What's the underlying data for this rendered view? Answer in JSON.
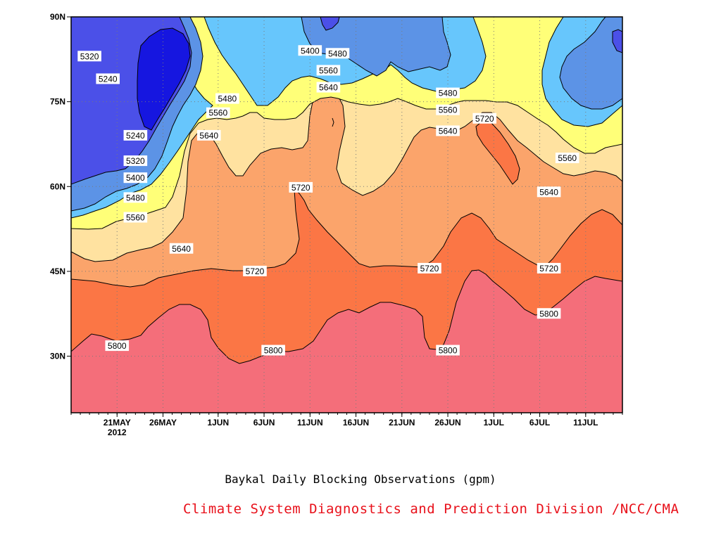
{
  "chart_data": {
    "type": "heatmap",
    "subtype": "filled-contour (time-latitude Hovmoller)",
    "x_axis": {
      "tick_labels": [
        "21MAY\n2012",
        "26MAY",
        "1JUN",
        "6JUN",
        "11JUN",
        "16JUN",
        "21JUN",
        "26JUN",
        "1JUL",
        "6JUL",
        "11JUL"
      ],
      "range": [
        "2012-05-16",
        "2012-07-15"
      ]
    },
    "y_axis": {
      "tick_labels": [
        "30N",
        "45N",
        "60N",
        "75N",
        "90N"
      ],
      "ticks": [
        30,
        45,
        60,
        75,
        90
      ],
      "range": [
        20,
        90
      ]
    },
    "grid": true,
    "contour_levels": [
      5240,
      5320,
      5400,
      5480,
      5560,
      5640,
      5720,
      5800
    ],
    "fill_colors": {
      "below_5240": "#1616e0",
      "5240_5320": "#4b50e8",
      "5320_5400": "#5c93e6",
      "5400_5480": "#67c6fc",
      "5480_5560": "#ffff78",
      "5560_5640": "#ffe2a0",
      "5640_5720": "#fba46b",
      "5720_5800": "#fb7645",
      "above_5800": "#f46e7a"
    },
    "contour_labels": [
      {
        "text": "5320",
        "date": "2012-05-18",
        "lat": 83
      },
      {
        "text": "5240",
        "date": "2012-05-20",
        "lat": 79
      },
      {
        "text": "5240",
        "date": "2012-05-23",
        "lat": 69
      },
      {
        "text": "5320",
        "date": "2012-05-23",
        "lat": 64.5
      },
      {
        "text": "5400",
        "date": "2012-05-23",
        "lat": 61.5
      },
      {
        "text": "5480",
        "date": "2012-05-23",
        "lat": 58
      },
      {
        "text": "5560",
        "date": "2012-05-23",
        "lat": 54.5
      },
      {
        "text": "5640",
        "date": "2012-05-28",
        "lat": 49
      },
      {
        "text": "5480",
        "date": "2012-06-02",
        "lat": 75.5
      },
      {
        "text": "5560",
        "date": "2012-06-01",
        "lat": 73
      },
      {
        "text": "5640",
        "date": "2012-05-31",
        "lat": 69
      },
      {
        "text": "5400",
        "date": "2012-06-11",
        "lat": 84
      },
      {
        "text": "5480",
        "date": "2012-06-14",
        "lat": 83.5
      },
      {
        "text": "5560",
        "date": "2012-06-13",
        "lat": 80.5
      },
      {
        "text": "5640",
        "date": "2012-06-13",
        "lat": 77.5
      },
      {
        "text": "5720",
        "date": "2012-06-10",
        "lat": 59.8
      },
      {
        "text": "5720",
        "date": "2012-06-05",
        "lat": 45
      },
      {
        "text": "5800",
        "date": "2012-06-07",
        "lat": 31
      },
      {
        "text": "5800",
        "date": "2012-05-21",
        "lat": 31.8
      },
      {
        "text": "5480",
        "date": "2012-06-26",
        "lat": 76.5
      },
      {
        "text": "5560",
        "date": "2012-06-26",
        "lat": 73.5
      },
      {
        "text": "5640",
        "date": "2012-06-26",
        "lat": 69.8
      },
      {
        "text": "5720",
        "date": "2012-06-30",
        "lat": 72
      },
      {
        "text": "5720",
        "date": "2012-06-24",
        "lat": 45.5
      },
      {
        "text": "5800",
        "date": "2012-06-26",
        "lat": 31
      },
      {
        "text": "5560",
        "date": "2012-07-09",
        "lat": 65
      },
      {
        "text": "5640",
        "date": "2012-07-07",
        "lat": 59
      },
      {
        "text": "5720",
        "date": "2012-07-07",
        "lat": 45.5
      },
      {
        "text": "5800",
        "date": "2012-07-07",
        "lat": 37.5
      }
    ],
    "xlabel": "",
    "ylabel": "",
    "title": "Baykal Daily Blocking Observations (gpm)"
  },
  "caption": "Baykal Daily Blocking Observations (gpm)",
  "credit": "Climate System Diagnostics and Prediction Division /NCC/CMA"
}
